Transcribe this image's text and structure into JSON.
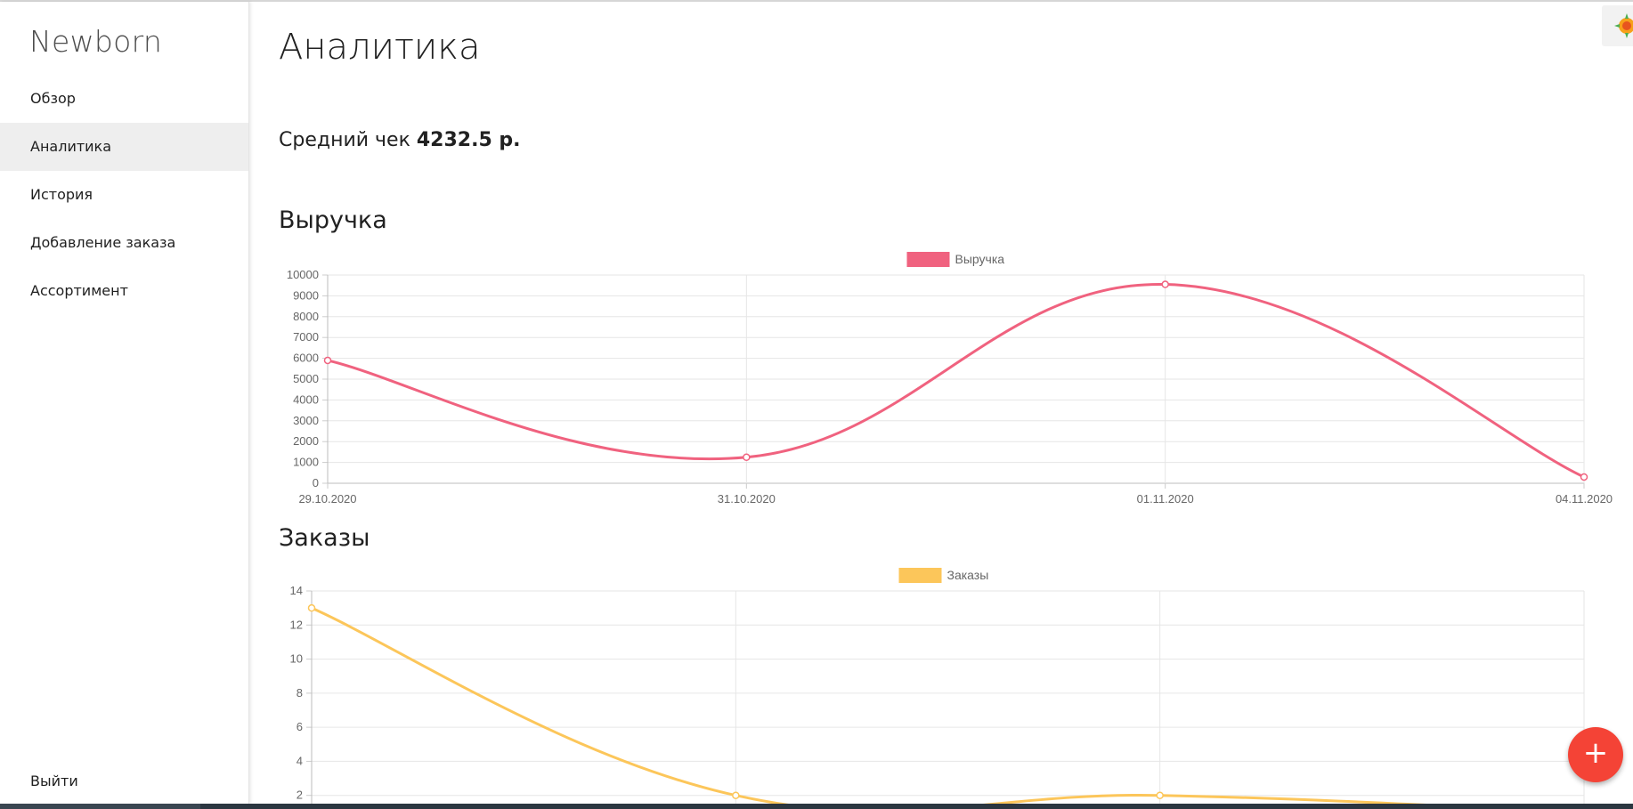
{
  "sidebar": {
    "brand": "Newborn",
    "items": [
      {
        "label": "Обзор",
        "active": false
      },
      {
        "label": "Аналитика",
        "active": true
      },
      {
        "label": "История",
        "active": false
      },
      {
        "label": "Добавление заказа",
        "active": false
      },
      {
        "label": "Ассортимент",
        "active": false
      }
    ],
    "logout": "Выйти"
  },
  "main": {
    "title": "Аналитика",
    "avg_check_label": "Средний чек",
    "avg_check_value": "4232.5 р.",
    "revenue_title": "Выручка",
    "orders_title": "Заказы"
  },
  "fab": {
    "label": "+",
    "color": "#f44336"
  },
  "chart_data": [
    {
      "type": "line",
      "x": [
        "29.10.2020",
        "31.10.2020",
        "01.11.2020",
        "04.11.2020"
      ],
      "series": [
        {
          "name": "Выручка",
          "values": [
            5900,
            1250,
            9550,
            300
          ],
          "color": "#f0627f"
        }
      ],
      "legend": "top-center",
      "ylim": [
        0,
        10000
      ],
      "yticks": [
        0,
        1000,
        2000,
        3000,
        4000,
        5000,
        6000,
        7000,
        8000,
        9000,
        10000
      ],
      "grid": true
    },
    {
      "type": "line",
      "x": [
        "",
        "",
        "",
        ""
      ],
      "series": [
        {
          "name": "Заказы",
          "values": [
            13,
            2,
            2,
            1
          ],
          "color": "#fcc65a"
        }
      ],
      "legend": "top-center",
      "ylim": [
        0,
        14
      ],
      "yticks": [
        2,
        4,
        6,
        8,
        10,
        12,
        14
      ],
      "grid": true
    }
  ]
}
